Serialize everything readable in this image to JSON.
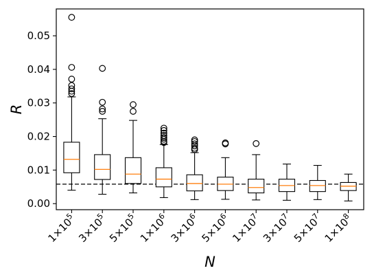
{
  "chart_data": {
    "type": "box",
    "xlabel": "N",
    "ylabel": "R",
    "ylim": [
      -0.0018,
      0.058
    ],
    "yticks": [
      0.0,
      0.01,
      0.02,
      0.03,
      0.04,
      0.05
    ],
    "ytick_labels": [
      "0.00",
      "0.01",
      "0.02",
      "0.03",
      "0.04",
      "0.05"
    ],
    "reference_line": 0.0058,
    "colors": {
      "median": "#ff7f0e",
      "box": "#000000",
      "reference": "#000000"
    },
    "categories": [
      {
        "mantissa": "1",
        "exponent": "5"
      },
      {
        "mantissa": "3",
        "exponent": "5"
      },
      {
        "mantissa": "5",
        "exponent": "5"
      },
      {
        "mantissa": "1",
        "exponent": "6"
      },
      {
        "mantissa": "3",
        "exponent": "6"
      },
      {
        "mantissa": "5",
        "exponent": "6"
      },
      {
        "mantissa": "1",
        "exponent": "7"
      },
      {
        "mantissa": "3",
        "exponent": "7"
      },
      {
        "mantissa": "5",
        "exponent": "7"
      },
      {
        "mantissa": "1",
        "exponent": "8"
      }
    ],
    "boxes": [
      {
        "whisker_low": 0.004,
        "q1": 0.0092,
        "median": 0.0132,
        "q3": 0.0183,
        "whisker_high": 0.0318,
        "outliers": [
          0.0328,
          0.0335,
          0.0342,
          0.0352,
          0.0371,
          0.0406,
          0.0555
        ]
      },
      {
        "whisker_low": 0.0028,
        "q1": 0.0072,
        "median": 0.0102,
        "q3": 0.0146,
        "whisker_high": 0.0253,
        "outliers": [
          0.0275,
          0.0282,
          0.0302,
          0.0403
        ]
      },
      {
        "whisker_low": 0.0032,
        "q1": 0.006,
        "median": 0.0088,
        "q3": 0.0137,
        "whisker_high": 0.0248,
        "outliers": [
          0.0275,
          0.0295
        ]
      },
      {
        "whisker_low": 0.0018,
        "q1": 0.005,
        "median": 0.0073,
        "q3": 0.0107,
        "whisker_high": 0.0176,
        "outliers": [
          0.0182,
          0.0186,
          0.0192,
          0.0197,
          0.0203,
          0.021,
          0.0218,
          0.0225
        ]
      },
      {
        "whisker_low": 0.0012,
        "q1": 0.0038,
        "median": 0.006,
        "q3": 0.0086,
        "whisker_high": 0.0152,
        "outliers": [
          0.0161,
          0.0165,
          0.0172,
          0.0178,
          0.0185,
          0.019
        ]
      },
      {
        "whisker_low": 0.0013,
        "q1": 0.0039,
        "median": 0.0058,
        "q3": 0.0079,
        "whisker_high": 0.0137,
        "outliers": [
          0.0178,
          0.0181
        ]
      },
      {
        "whisker_low": 0.0011,
        "q1": 0.0032,
        "median": 0.0048,
        "q3": 0.0073,
        "whisker_high": 0.0146,
        "outliers": [
          0.0179
        ]
      },
      {
        "whisker_low": 0.001,
        "q1": 0.0036,
        "median": 0.0054,
        "q3": 0.0073,
        "whisker_high": 0.0118,
        "outliers": []
      },
      {
        "whisker_low": 0.0012,
        "q1": 0.0036,
        "median": 0.0054,
        "q3": 0.0069,
        "whisker_high": 0.0114,
        "outliers": []
      },
      {
        "whisker_low": 0.0008,
        "q1": 0.0039,
        "median": 0.0052,
        "q3": 0.0063,
        "whisker_high": 0.0088,
        "outliers": []
      }
    ]
  }
}
